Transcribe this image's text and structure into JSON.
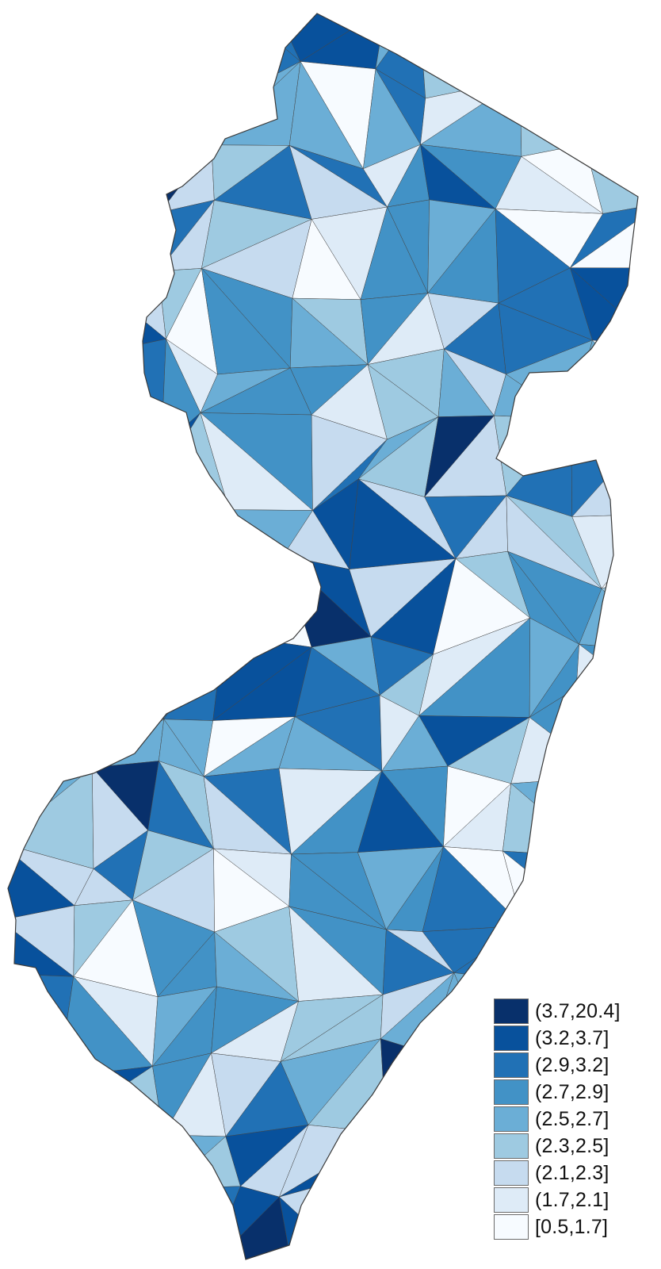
{
  "map": {
    "legend": {
      "classes": [
        {
          "label": "(3.7,20.4]",
          "color": "#08306b"
        },
        {
          "label": "(3.2,3.7]",
          "color": "#08519c"
        },
        {
          "label": "(2.9,3.2]",
          "color": "#2171b5"
        },
        {
          "label": "(2.7,2.9]",
          "color": "#4292c6"
        },
        {
          "label": "(2.5,2.7]",
          "color": "#6baed6"
        },
        {
          "label": "(2.3,2.5]",
          "color": "#9ecae1"
        },
        {
          "label": "(2.1,2.3]",
          "color": "#c6dbef"
        },
        {
          "label": "(1.7,2.1]",
          "color": "#deebf7"
        },
        {
          "label": "[0.5,1.7]",
          "color": "#f7fbff"
        }
      ]
    },
    "regions": [
      {
        "cls": 5
      },
      {
        "cls": 3
      },
      {
        "cls": 6
      },
      {
        "cls": 2
      },
      {
        "cls": 1
      },
      {
        "cls": 4
      },
      {
        "cls": 2
      },
      {
        "cls": 7
      },
      {
        "cls": 4
      },
      {
        "cls": 3
      },
      {
        "cls": 5
      },
      {
        "cls": 6
      },
      {
        "cls": 4
      },
      {
        "cls": 8
      },
      {
        "cls": 2
      },
      {
        "cls": 7
      },
      {
        "cls": 1
      },
      {
        "cls": 3
      },
      {
        "cls": 6
      },
      {
        "cls": 4
      },
      {
        "cls": 0
      },
      {
        "cls": 5
      },
      {
        "cls": 2
      },
      {
        "cls": 7
      },
      {
        "cls": 3
      },
      {
        "cls": 8
      },
      {
        "cls": 4
      },
      {
        "cls": 1
      },
      {
        "cls": 6
      },
      {
        "cls": 2
      },
      {
        "cls": 5
      },
      {
        "cls": 7
      },
      {
        "cls": 3
      },
      {
        "cls": 4
      },
      {
        "cls": 8
      },
      {
        "cls": 2
      },
      {
        "cls": 1
      },
      {
        "cls": 6
      },
      {
        "cls": 5
      },
      {
        "cls": 3
      }
    ]
  }
}
